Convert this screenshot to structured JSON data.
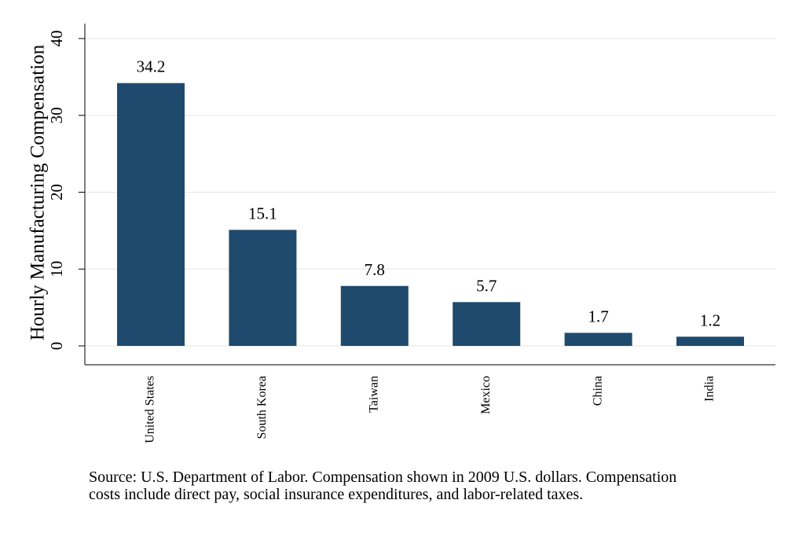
{
  "chart_data": {
    "type": "bar",
    "categories": [
      "United States",
      "South Korea",
      "Taiwan",
      "Mexico",
      "China",
      "India"
    ],
    "values": [
      34.2,
      15.1,
      7.8,
      5.7,
      1.7,
      1.2
    ],
    "value_labels": [
      "34.2",
      "15.1",
      "7.8",
      "5.7",
      "1.7",
      "1.2"
    ],
    "ylabel": "Hourly Manufacturing Compensation",
    "xlabel": "",
    "ylim": [
      0,
      40
    ],
    "yticks": [
      0,
      10,
      20,
      30,
      40
    ],
    "grid": true,
    "bar_color": "#1f4a6e",
    "note_lines": [
      "Source: U.S. Department of Labor. Compensation shown in 2009 U.S. dollars. Compensation",
      "costs include direct pay, social insurance expenditures, and labor-related taxes."
    ]
  }
}
